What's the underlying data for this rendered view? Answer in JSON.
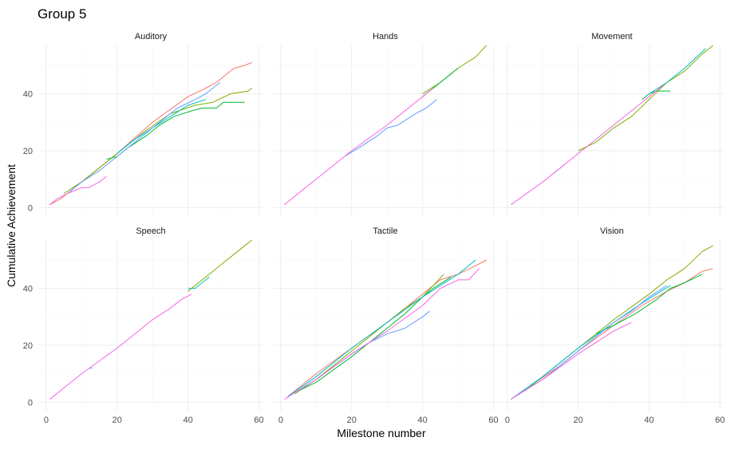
{
  "chart_data": {
    "type": "line",
    "title": "Group 5",
    "xlabel": "Milestone number",
    "ylabel": "Cumulative Achievement",
    "xlim": [
      -2,
      61
    ],
    "ylim": [
      -3,
      57
    ],
    "xticks": [
      0,
      20,
      40,
      60
    ],
    "yticks": [
      0,
      20,
      40
    ],
    "grid": true,
    "legend": "none",
    "panels": [
      {
        "name": "Auditory",
        "series": [
          {
            "color": "#F8766D",
            "points": [
              [
                1,
                1
              ],
              [
                4,
                3
              ],
              [
                10,
                9
              ],
              [
                20,
                19
              ],
              [
                30,
                30
              ],
              [
                40,
                39
              ],
              [
                45,
                42
              ],
              [
                48,
                44
              ],
              [
                53,
                49
              ],
              [
                56,
                50
              ],
              [
                58,
                51
              ]
            ]
          },
          {
            "color": "#7CAE00",
            "points": [
              [
                5,
                5
              ],
              [
                10,
                9
              ],
              [
                16,
                15
              ],
              [
                20,
                19
              ],
              [
                28,
                27
              ],
              [
                35,
                33
              ],
              [
                42,
                36
              ],
              [
                47,
                37
              ],
              [
                52,
                40
              ],
              [
                57,
                41
              ],
              [
                58,
                42
              ]
            ]
          },
          {
            "color": "#00BA38",
            "points": [
              [
                17,
                17
              ],
              [
                20,
                18
              ],
              [
                23,
                21
              ],
              [
                28,
                25
              ],
              [
                32,
                29
              ],
              [
                36,
                32
              ],
              [
                41,
                34
              ],
              [
                44,
                35
              ],
              [
                48,
                35
              ],
              [
                50,
                37
              ],
              [
                56,
                37
              ]
            ]
          },
          {
            "color": "#00BFC4",
            "points": [
              [
                20,
                19
              ],
              [
                25,
                24
              ],
              [
                30,
                28
              ],
              [
                35,
                32
              ],
              [
                40,
                36
              ],
              [
                45,
                38
              ]
            ]
          },
          {
            "color": "#619CFF",
            "points": [
              [
                6,
                5
              ],
              [
                10,
                9
              ],
              [
                15,
                13
              ],
              [
                22,
                20
              ],
              [
                30,
                28
              ],
              [
                37,
                35
              ],
              [
                42,
                38
              ],
              [
                45,
                40
              ],
              [
                49,
                44
              ]
            ]
          },
          {
            "color": "#F564E3",
            "points": [
              [
                1,
                1
              ],
              [
                3,
                3
              ],
              [
                6,
                5
              ],
              [
                8,
                6
              ],
              [
                10,
                7
              ],
              [
                12,
                7
              ],
              [
                15,
                9
              ],
              [
                17,
                11
              ]
            ]
          }
        ]
      },
      {
        "name": "Hands",
        "series": [
          {
            "color": "#7CAE00",
            "points": [
              [
                40,
                40
              ],
              [
                45,
                44
              ],
              [
                50,
                49
              ],
              [
                55,
                53
              ],
              [
                58,
                57
              ]
            ]
          },
          {
            "color": "#00BA38",
            "points": [
              [
                40,
                39
              ],
              [
                45,
                44
              ],
              [
                48,
                47
              ],
              [
                50,
                49
              ]
            ]
          },
          {
            "color": "#619CFF",
            "points": [
              [
                18,
                18
              ],
              [
                22,
                21
              ],
              [
                27,
                25
              ],
              [
                30,
                28
              ],
              [
                33,
                29
              ],
              [
                38,
                33
              ],
              [
                41,
                35
              ],
              [
                44,
                38
              ]
            ]
          },
          {
            "color": "#F564E3",
            "points": [
              [
                1,
                1
              ],
              [
                10,
                10
              ],
              [
                20,
                20
              ],
              [
                30,
                29
              ],
              [
                40,
                39
              ],
              [
                43,
                42
              ]
            ]
          }
        ]
      },
      {
        "name": "Movement",
        "series": [
          {
            "color": "#7CAE00",
            "points": [
              [
                20,
                20
              ],
              [
                25,
                23
              ],
              [
                30,
                28
              ],
              [
                35,
                32
              ],
              [
                40,
                38
              ],
              [
                45,
                44
              ],
              [
                50,
                48
              ],
              [
                55,
                54
              ],
              [
                58,
                57
              ]
            ]
          },
          {
            "color": "#00BA38",
            "points": [
              [
                38,
                38
              ],
              [
                40,
                40
              ],
              [
                42,
                41
              ],
              [
                46,
                41
              ]
            ]
          },
          {
            "color": "#00BFC4",
            "points": [
              [
                40,
                40
              ],
              [
                45,
                44
              ],
              [
                50,
                49
              ],
              [
                56,
                56
              ]
            ]
          },
          {
            "color": "#619CFF",
            "points": [
              [
                13,
                12
              ],
              [
                15,
                14
              ],
              [
                16,
                15
              ]
            ]
          },
          {
            "color": "#F564E3",
            "points": [
              [
                1,
                1
              ],
              [
                10,
                9
              ],
              [
                20,
                19
              ],
              [
                30,
                29
              ],
              [
                40,
                39
              ],
              [
                44,
                43
              ]
            ]
          }
        ]
      },
      {
        "name": "Speech",
        "series": [
          {
            "color": "#7CAE00",
            "points": [
              [
                40,
                39
              ],
              [
                45,
                44
              ],
              [
                50,
                49
              ],
              [
                55,
                54
              ],
              [
                58,
                57
              ]
            ]
          },
          {
            "color": "#00BFC4",
            "points": [
              [
                40,
                40
              ],
              [
                42,
                40
              ],
              [
                44,
                42
              ],
              [
                46,
                44
              ]
            ]
          },
          {
            "color": "#619CFF",
            "points": [
              [
                12,
                12
              ],
              [
                13,
                12
              ]
            ]
          },
          {
            "color": "#F564E3",
            "points": [
              [
                1,
                1
              ],
              [
                10,
                10
              ],
              [
                20,
                19
              ],
              [
                30,
                29
              ],
              [
                35,
                33
              ],
              [
                38,
                36
              ],
              [
                41,
                38
              ]
            ]
          }
        ]
      },
      {
        "name": "Tactile",
        "series": [
          {
            "color": "#F8766D",
            "points": [
              [
                2,
                2
              ],
              [
                10,
                10
              ],
              [
                20,
                19
              ],
              [
                30,
                28
              ],
              [
                40,
                38
              ],
              [
                45,
                43
              ],
              [
                50,
                45
              ],
              [
                55,
                48
              ],
              [
                58,
                50
              ]
            ]
          },
          {
            "color": "#7CAE00",
            "points": [
              [
                4,
                3
              ],
              [
                10,
                8
              ],
              [
                20,
                18
              ],
              [
                30,
                28
              ],
              [
                35,
                33
              ],
              [
                40,
                37
              ],
              [
                46,
                45
              ]
            ]
          },
          {
            "color": "#00BA38",
            "points": [
              [
                5,
                4
              ],
              [
                10,
                7
              ],
              [
                20,
                16
              ],
              [
                30,
                26
              ],
              [
                35,
                31
              ],
              [
                40,
                37
              ],
              [
                43,
                40
              ],
              [
                48,
                44
              ]
            ]
          },
          {
            "color": "#00BFC4",
            "points": [
              [
                2,
                2
              ],
              [
                10,
                9
              ],
              [
                20,
                19
              ],
              [
                30,
                28
              ],
              [
                40,
                37
              ],
              [
                45,
                41
              ],
              [
                50,
                45
              ],
              [
                55,
                50
              ]
            ]
          },
          {
            "color": "#619CFF",
            "points": [
              [
                6,
                5
              ],
              [
                10,
                8
              ],
              [
                20,
                17
              ],
              [
                25,
                21
              ],
              [
                30,
                24
              ],
              [
                35,
                26
              ],
              [
                40,
                30
              ],
              [
                42,
                32
              ]
            ]
          },
          {
            "color": "#F564E3",
            "points": [
              [
                1,
                1
              ],
              [
                10,
                8
              ],
              [
                20,
                17
              ],
              [
                30,
                25
              ],
              [
                40,
                34
              ],
              [
                45,
                40
              ],
              [
                50,
                43
              ],
              [
                53,
                43
              ],
              [
                56,
                47
              ]
            ]
          }
        ]
      },
      {
        "name": "Vision",
        "series": [
          {
            "color": "#F8766D",
            "points": [
              [
                8,
                7
              ],
              [
                15,
                13
              ],
              [
                20,
                18
              ],
              [
                30,
                27
              ],
              [
                38,
                34
              ],
              [
                45,
                39
              ],
              [
                50,
                42
              ],
              [
                55,
                46
              ],
              [
                58,
                47
              ]
            ]
          },
          {
            "color": "#7CAE00",
            "points": [
              [
                5,
                4
              ],
              [
                10,
                9
              ],
              [
                20,
                19
              ],
              [
                30,
                29
              ],
              [
                40,
                38
              ],
              [
                45,
                43
              ],
              [
                50,
                47
              ],
              [
                55,
                53
              ],
              [
                58,
                55
              ]
            ]
          },
          {
            "color": "#00BA38",
            "points": [
              [
                25,
                24
              ],
              [
                30,
                27
              ],
              [
                36,
                31
              ],
              [
                42,
                36
              ],
              [
                46,
                40
              ],
              [
                50,
                42
              ],
              [
                55,
                45
              ]
            ]
          },
          {
            "color": "#00BFC4",
            "points": [
              [
                1,
                1
              ],
              [
                10,
                9
              ],
              [
                20,
                19
              ],
              [
                30,
                28
              ],
              [
                37,
                34
              ],
              [
                42,
                38
              ],
              [
                46,
                41
              ]
            ]
          },
          {
            "color": "#619CFF",
            "points": [
              [
                2,
                2
              ],
              [
                10,
                8
              ],
              [
                20,
                18
              ],
              [
                30,
                28
              ],
              [
                35,
                32
              ],
              [
                40,
                37
              ],
              [
                45,
                41
              ]
            ]
          },
          {
            "color": "#F564E3",
            "points": [
              [
                1,
                1
              ],
              [
                10,
                8
              ],
              [
                20,
                17
              ],
              [
                30,
                25
              ],
              [
                35,
                28
              ]
            ]
          }
        ]
      }
    ]
  }
}
